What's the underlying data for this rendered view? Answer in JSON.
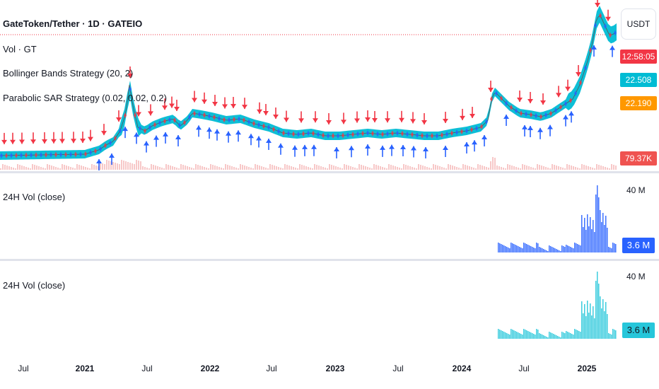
{
  "legend": {
    "symbol": "GateToken/Tether · 1D · GATEIO",
    "vol": "Vol · GT",
    "bollinger": "Bollinger Bands Strategy (20, 2)",
    "psar": "Parabolic SAR Strategy (0.02, 0.02, 0.2)"
  },
  "axis": {
    "currency_button": "USDT",
    "countdown": "12:58:05",
    "price_a": "22.508",
    "price_b": "22.190",
    "volume_label": "79.37K"
  },
  "pane2": {
    "title": "24H Vol (close)",
    "top_label": "40 M",
    "value": "3.6 M"
  },
  "pane3": {
    "title": "24H Vol (close)",
    "top_label": "40 M",
    "value": "3.6 M"
  },
  "xaxis": [
    {
      "label": "Jul",
      "year": false
    },
    {
      "label": "2021",
      "year": true
    },
    {
      "label": "Jul",
      "year": false
    },
    {
      "label": "2022",
      "year": true
    },
    {
      "label": "Jul",
      "year": false
    },
    {
      "label": "2023",
      "year": true
    },
    {
      "label": "Jul",
      "year": false
    },
    {
      "label": "2024",
      "year": true
    },
    {
      "label": "Jul",
      "year": false
    },
    {
      "label": "2025",
      "year": true
    }
  ],
  "colors": {
    "band": "#00bcd4",
    "sell_arrow": "#f23645",
    "buy_arrow": "#2962ff",
    "vol_blue": "#2962ff",
    "vol_teal": "#26c6da",
    "price_a_bg": "#00bcd4",
    "price_b_bg": "#ff9800",
    "countdown_bg": "#f23645",
    "volume_bg": "#ef5350"
  },
  "chart_data": {
    "type": "line",
    "description_series": "GT/USDT daily close with Bollinger band strategy and Parabolic SAR strategy signals",
    "x": [
      "2020-07",
      "2021-01",
      "2021-07",
      "2022-01",
      "2022-07",
      "2023-01",
      "2023-07",
      "2024-01",
      "2024-07",
      "2025-01"
    ],
    "price_shape": [
      1.0,
      1.1,
      5.5,
      6.8,
      4.3,
      4.0,
      4.2,
      4.3,
      8.2,
      21.5
    ],
    "last_price": 22.508
  }
}
